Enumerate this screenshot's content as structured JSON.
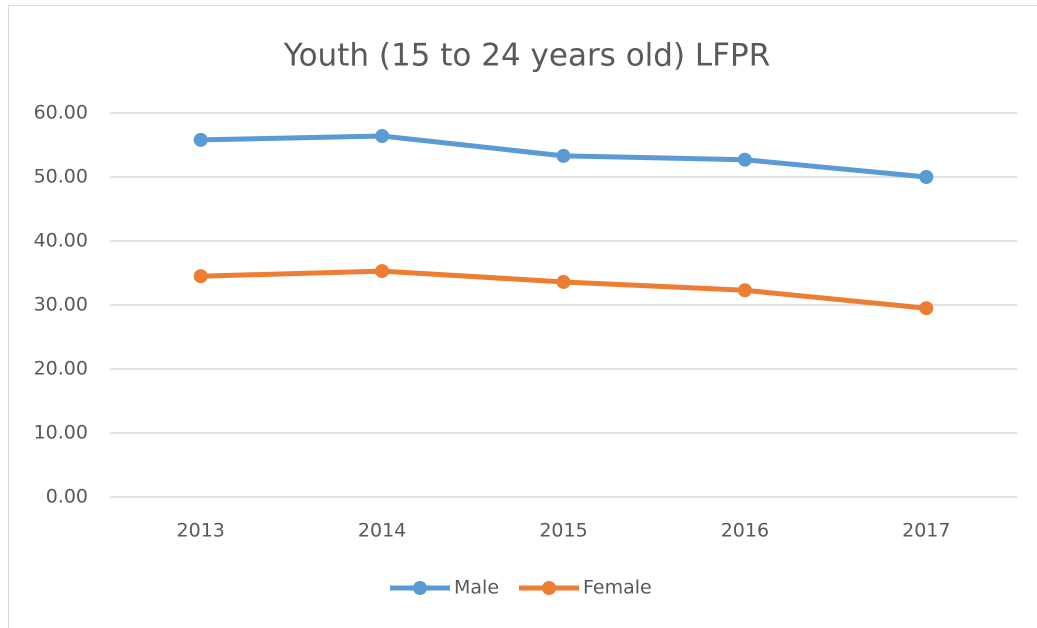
{
  "chart_data": {
    "type": "line",
    "title": "Youth (15 to 24 years old) LFPR",
    "categories": [
      "2013",
      "2014",
      "2015",
      "2016",
      "2017"
    ],
    "series": [
      {
        "name": "Male",
        "color": "#5b9bd5",
        "values": [
          55.8,
          56.4,
          53.3,
          52.7,
          50.0
        ]
      },
      {
        "name": "Female",
        "color": "#ed7d31",
        "values": [
          34.5,
          35.3,
          33.6,
          32.3,
          29.5
        ]
      }
    ],
    "ylim": [
      0,
      60
    ],
    "yticks": [
      {
        "value": 0,
        "label": "0.00"
      },
      {
        "value": 10,
        "label": "10.00"
      },
      {
        "value": 20,
        "label": "20.00"
      },
      {
        "value": 30,
        "label": "30.00"
      },
      {
        "value": 40,
        "label": "40.00"
      },
      {
        "value": 50,
        "label": "50.00"
      },
      {
        "value": 60,
        "label": "60.00"
      }
    ],
    "grid": true,
    "legend": "bottom"
  }
}
